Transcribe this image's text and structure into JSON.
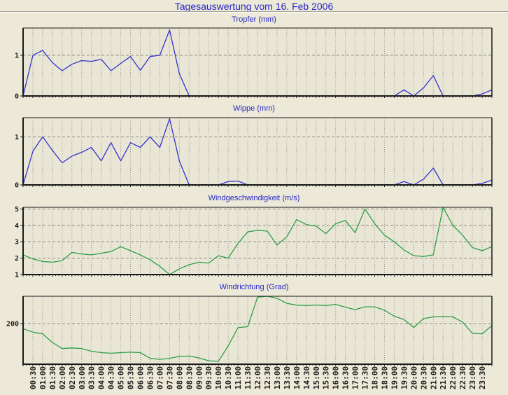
{
  "page": {
    "title": "Tagesauswertung vom 16. Feb 2006"
  },
  "colors": {
    "background": "#ece9d8",
    "plot_background": "#e9e6d6",
    "plot_border": "#1a1a1a",
    "grid_vertical": "#9a9a90",
    "grid_horizontal": "#8a8a80",
    "title_text": "#2626c9",
    "tick_text": "#1c1c1c",
    "rain_line": "#3333cc",
    "wind_line": "#2e9e48"
  },
  "x_axis": {
    "labels": [
      "00:30",
      "01:00",
      "01:30",
      "02:00",
      "02:30",
      "03:00",
      "03:30",
      "04:00",
      "04:30",
      "05:00",
      "05:30",
      "06:00",
      "06:30",
      "07:00",
      "07:30",
      "08:00",
      "08:30",
      "09:00",
      "09:30",
      "10:00",
      "10:30",
      "11:00",
      "11:30",
      "12:00",
      "12:30",
      "13:00",
      "13:30",
      "14:00",
      "14:30",
      "15:00",
      "15:30",
      "16:00",
      "16:30",
      "17:00",
      "17:30",
      "18:00",
      "18:30",
      "19:00",
      "19:30",
      "20:00",
      "20:30",
      "21:00",
      "21:30",
      "22:00",
      "22:30",
      "23:00",
      "23:30"
    ],
    "start_hour": 0,
    "end_hour": 24,
    "step_hours": 0.5
  },
  "chart_data": [
    {
      "id": "tropfer",
      "type": "line",
      "title": "Tropfer (mm)",
      "line_color": "#3333cc",
      "ylim": [
        0,
        1.67
      ],
      "yticks": [
        0,
        1
      ],
      "x_hours_start": 0,
      "x_hours_step": 0.5,
      "values": [
        0,
        1.0,
        1.12,
        0.82,
        0.62,
        0.78,
        0.87,
        0.85,
        0.9,
        0.62,
        0.8,
        0.97,
        0.63,
        0.97,
        1.0,
        1.62,
        0.55,
        0,
        0,
        0,
        0,
        0,
        0,
        0,
        0,
        0,
        0,
        0,
        0,
        0,
        0,
        0,
        0,
        0,
        0,
        0,
        0,
        0,
        0,
        0.15,
        0,
        0.2,
        0.5,
        0,
        0,
        0,
        0,
        0.05,
        0.15
      ]
    },
    {
      "id": "wippe",
      "type": "line",
      "title": "Wippe (mm)",
      "line_color": "#3333cc",
      "ylim": [
        0,
        1.4
      ],
      "yticks": [
        0,
        1
      ],
      "x_hours_start": 0,
      "x_hours_step": 0.5,
      "values": [
        0,
        0.7,
        1.0,
        0.72,
        0.46,
        0.6,
        0.68,
        0.78,
        0.5,
        0.88,
        0.5,
        0.88,
        0.78,
        1.0,
        0.78,
        1.38,
        0.5,
        0,
        0,
        0,
        0,
        0.07,
        0.08,
        0,
        0,
        0,
        0,
        0,
        0,
        0,
        0,
        0,
        0,
        0,
        0,
        0,
        0,
        0,
        0,
        0.07,
        0,
        0.12,
        0.35,
        0,
        0,
        0,
        0,
        0.03,
        0.1
      ]
    },
    {
      "id": "windgeschwindigkeit",
      "type": "line",
      "title": "Windgeschwindigkeit (m/s)",
      "line_color": "#2e9e48",
      "ylim": [
        1,
        5.1
      ],
      "yticks": [
        1,
        2,
        3,
        4,
        5
      ],
      "x_hours_start": 0,
      "x_hours_step": 0.5,
      "values": [
        2.2,
        1.95,
        1.8,
        1.75,
        1.85,
        2.35,
        2.25,
        2.2,
        2.3,
        2.4,
        2.7,
        2.45,
        2.2,
        1.9,
        1.5,
        1.0,
        1.35,
        1.6,
        1.75,
        1.7,
        2.15,
        2.0,
        2.9,
        3.6,
        3.7,
        3.65,
        2.8,
        3.3,
        4.35,
        4.05,
        3.95,
        3.5,
        4.1,
        4.3,
        3.55,
        5.0,
        4.1,
        3.4,
        3.0,
        2.5,
        2.15,
        2.1,
        2.2,
        5.1,
        4.0,
        3.4,
        2.65,
        2.45,
        2.7
      ]
    },
    {
      "id": "windrichtung",
      "type": "line",
      "title": "Windrichtung (Grad)",
      "line_color": "#2e9e48",
      "ylim": [
        0,
        335
      ],
      "yticks": [
        200
      ],
      "x_hours_start": 0,
      "x_hours_step": 0.5,
      "values": [
        175,
        158,
        150,
        107,
        77,
        80,
        77,
        64,
        57,
        54,
        57,
        59,
        57,
        29,
        24,
        29,
        38,
        40,
        31,
        17,
        14,
        90,
        180,
        185,
        330,
        335,
        325,
        300,
        291,
        289,
        292,
        289,
        295,
        281,
        269,
        283,
        283,
        266,
        237,
        220,
        181,
        225,
        233,
        235,
        233,
        208,
        152,
        150,
        190
      ]
    }
  ]
}
